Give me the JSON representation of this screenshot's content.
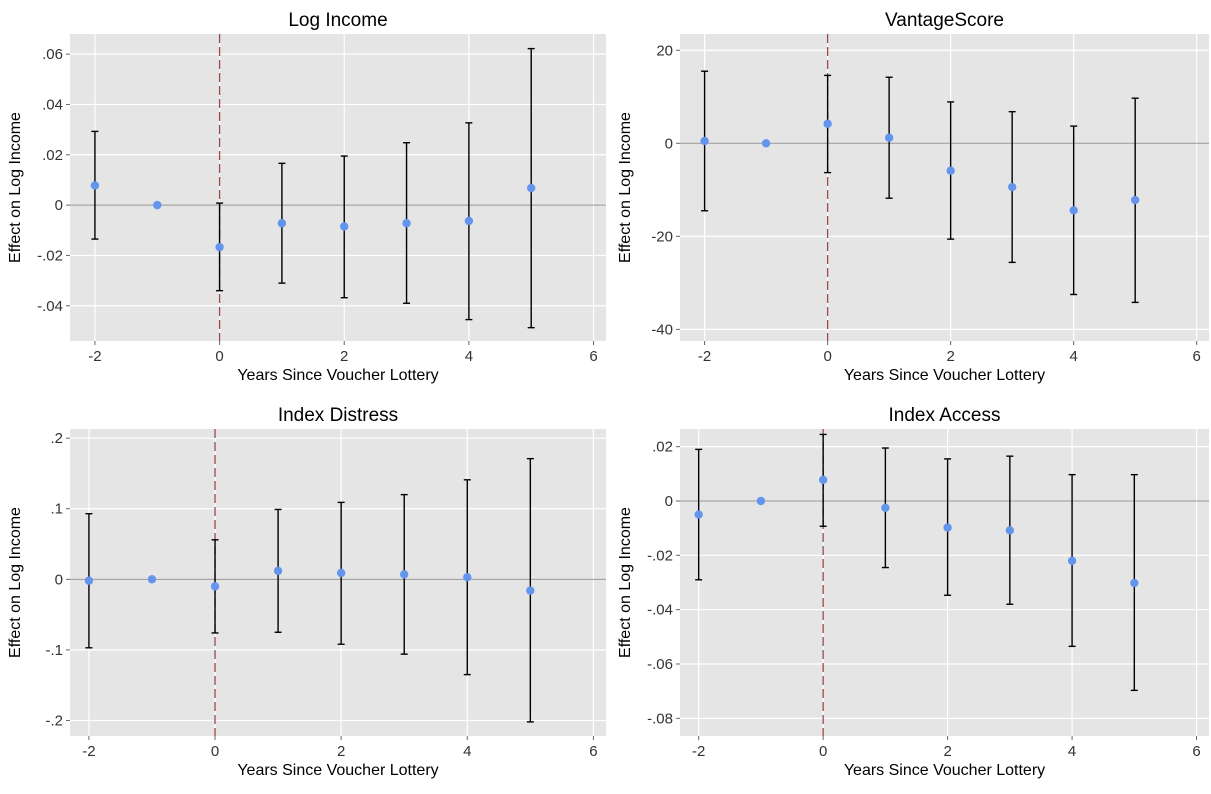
{
  "chart_data": [
    {
      "type": "scatter",
      "title": "Log Income",
      "xlabel": "Years Since Voucher Lottery",
      "ylabel": "Effect on Log Income",
      "xlim": [
        -2.4,
        6.2
      ],
      "ylim": [
        -0.054,
        0.068
      ],
      "xticks": [
        -2,
        0,
        2,
        4,
        6
      ],
      "xtick_labels": [
        "-2",
        "0",
        "2",
        "4",
        "6"
      ],
      "yticks": [
        -0.04,
        -0.02,
        0,
        0.02,
        0.04,
        0.06
      ],
      "ytick_labels": [
        "-.04",
        "-.02",
        "0",
        ".02",
        ".04",
        ".06"
      ],
      "event_line_x": 0,
      "points": [
        {
          "x": -2,
          "y": 0.0078,
          "lo": -0.0135,
          "hi": 0.0293
        },
        {
          "x": -1,
          "y": 0.0
        },
        {
          "x": 0,
          "y": -0.0167,
          "lo": -0.034,
          "hi": 0.0008
        },
        {
          "x": 1,
          "y": -0.0072,
          "lo": -0.031,
          "hi": 0.0166
        },
        {
          "x": 2,
          "y": -0.0085,
          "lo": -0.0368,
          "hi": 0.0195
        },
        {
          "x": 3,
          "y": -0.0072,
          "lo": -0.039,
          "hi": 0.0248
        },
        {
          "x": 4,
          "y": -0.0063,
          "lo": -0.0455,
          "hi": 0.0327
        },
        {
          "x": 5,
          "y": 0.0068,
          "lo": -0.0487,
          "hi": 0.0622
        }
      ]
    },
    {
      "type": "scatter",
      "title": "VantageScore",
      "xlabel": "Years Since Voucher Lottery",
      "ylabel": "Effect on Log Income",
      "xlim": [
        -2.4,
        6.2
      ],
      "ylim": [
        -42.5,
        23.5
      ],
      "xticks": [
        -2,
        0,
        2,
        4,
        6
      ],
      "xtick_labels": [
        "-2",
        "0",
        "2",
        "4",
        "6"
      ],
      "yticks": [
        -40,
        -20,
        0,
        20
      ],
      "ytick_labels": [
        "-40",
        "-20",
        "0",
        "20"
      ],
      "event_line_x": 0,
      "points": [
        {
          "x": -2,
          "y": 0.5,
          "lo": -14.5,
          "hi": 15.5
        },
        {
          "x": -1,
          "y": 0.0
        },
        {
          "x": 0,
          "y": 4.2,
          "lo": -6.3,
          "hi": 14.6
        },
        {
          "x": 1,
          "y": 1.2,
          "lo": -11.8,
          "hi": 14.2
        },
        {
          "x": 2,
          "y": -5.9,
          "lo": -20.6,
          "hi": 8.9
        },
        {
          "x": 3,
          "y": -9.4,
          "lo": -25.6,
          "hi": 6.8
        },
        {
          "x": 4,
          "y": -14.4,
          "lo": -32.5,
          "hi": 3.7
        },
        {
          "x": 5,
          "y": -12.2,
          "lo": -34.2,
          "hi": 9.7
        }
      ]
    },
    {
      "type": "scatter",
      "title": "Index Distress",
      "xlabel": "Years Since Voucher Lottery",
      "ylabel": "Effect on Log Income",
      "xlim": [
        -2.3,
        6.2
      ],
      "ylim": [
        -0.222,
        0.213
      ],
      "xticks": [
        -2,
        0,
        2,
        4,
        6
      ],
      "xtick_labels": [
        "-2",
        "0",
        "2",
        "4",
        "6"
      ],
      "yticks": [
        -0.2,
        -0.1,
        0,
        0.1,
        0.2
      ],
      "ytick_labels": [
        "-.2",
        "-.1",
        "0",
        ".1",
        ".2"
      ],
      "event_line_x": 0,
      "points": [
        {
          "x": -2,
          "y": -0.002,
          "lo": -0.097,
          "hi": 0.093
        },
        {
          "x": -1,
          "y": 0.0
        },
        {
          "x": 0,
          "y": -0.01,
          "lo": -0.076,
          "hi": 0.056
        },
        {
          "x": 1,
          "y": 0.012,
          "lo": -0.075,
          "hi": 0.099
        },
        {
          "x": 2,
          "y": 0.009,
          "lo": -0.092,
          "hi": 0.109
        },
        {
          "x": 3,
          "y": 0.007,
          "lo": -0.106,
          "hi": 0.12
        },
        {
          "x": 4,
          "y": 0.003,
          "lo": -0.135,
          "hi": 0.141
        },
        {
          "x": 5,
          "y": -0.016,
          "lo": -0.202,
          "hi": 0.171
        }
      ]
    },
    {
      "type": "scatter",
      "title": "Index Access",
      "xlabel": "Years Since Voucher Lottery",
      "ylabel": "Effect on Log Income",
      "xlim": [
        -2.3,
        6.2
      ],
      "ylim": [
        -0.0865,
        0.0265
      ],
      "xticks": [
        -2,
        0,
        2,
        4,
        6
      ],
      "xtick_labels": [
        "-2",
        "0",
        "2",
        "4",
        "6"
      ],
      "yticks": [
        -0.08,
        -0.06,
        -0.04,
        -0.02,
        0,
        0.02
      ],
      "ytick_labels": [
        "-.08",
        "-.06",
        "-.04",
        "-.02",
        "0",
        ".02"
      ],
      "event_line_x": 0,
      "points": [
        {
          "x": -2,
          "y": -0.005,
          "lo": -0.029,
          "hi": 0.019
        },
        {
          "x": -1,
          "y": 0.0
        },
        {
          "x": 0,
          "y": 0.0078,
          "lo": -0.0093,
          "hi": 0.0245
        },
        {
          "x": 1,
          "y": -0.0025,
          "lo": -0.0245,
          "hi": 0.0195
        },
        {
          "x": 2,
          "y": -0.0098,
          "lo": -0.0347,
          "hi": 0.0155
        },
        {
          "x": 3,
          "y": -0.0108,
          "lo": -0.038,
          "hi": 0.0165
        },
        {
          "x": 4,
          "y": -0.022,
          "lo": -0.0535,
          "hi": 0.0097
        },
        {
          "x": 5,
          "y": -0.0302,
          "lo": -0.0697,
          "hi": 0.0097
        }
      ]
    }
  ],
  "style": {
    "panel_bg": "#e5e5e5",
    "grid": "#ffffff",
    "zero_line": "#999999",
    "event_line": "#9a4a4a",
    "error_bar": "#000000",
    "point": "#6495ed"
  }
}
